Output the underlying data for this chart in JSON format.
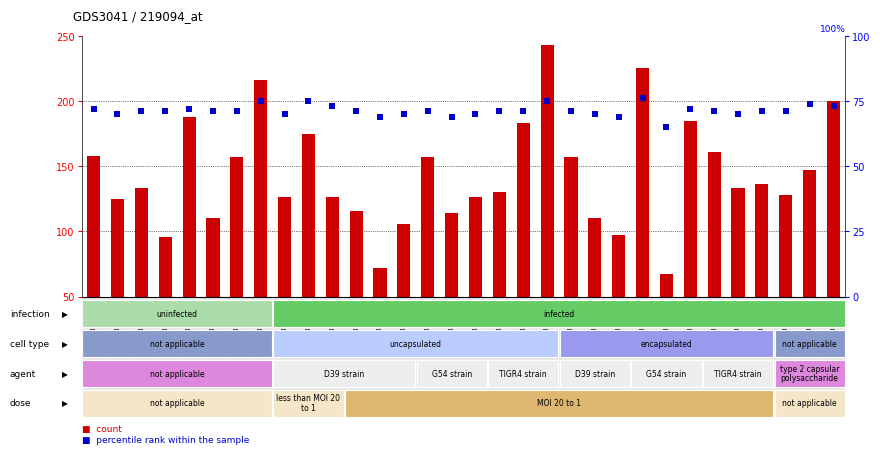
{
  "title": "GDS3041 / 219094_at",
  "samples": [
    "GSM211676",
    "GSM211677",
    "GSM211678",
    "GSM211682",
    "GSM211683",
    "GSM211696",
    "GSM211697",
    "GSM211698",
    "GSM211690",
    "GSM211691",
    "GSM211692",
    "GSM211670",
    "GSM211671",
    "GSM211672",
    "GSM211673",
    "GSM211674",
    "GSM211675",
    "GSM211687",
    "GSM211688",
    "GSM211689",
    "GSM211667",
    "GSM211668",
    "GSM211669",
    "GSM211679",
    "GSM211680",
    "GSM211681",
    "GSM211684",
    "GSM211685",
    "GSM211686",
    "GSM211693",
    "GSM211694",
    "GSM211695"
  ],
  "counts": [
    158,
    125,
    133,
    96,
    188,
    110,
    157,
    216,
    126,
    175,
    126,
    116,
    72,
    106,
    157,
    114,
    126,
    130,
    183,
    243,
    157,
    110,
    97,
    225,
    67,
    185,
    161,
    133,
    136,
    128,
    147,
    200
  ],
  "percentiles": [
    72,
    70,
    71,
    71,
    72,
    71,
    71,
    75,
    70,
    75,
    73,
    71,
    69,
    70,
    71,
    69,
    70,
    71,
    71,
    75,
    71,
    70,
    69,
    76,
    65,
    72,
    71,
    70,
    71,
    71,
    74,
    73
  ],
  "bar_color": "#cc0000",
  "dot_color": "#0000cc",
  "ymin": 50,
  "ymax": 250,
  "yticks_left": [
    50,
    100,
    150,
    200,
    250
  ],
  "yticks_right": [
    0,
    25,
    50,
    75,
    100
  ],
  "grid_lines": [
    100,
    150,
    200
  ],
  "annotation_rows": [
    {
      "label": "infection",
      "segments": [
        {
          "text": "uninfected",
          "start": 0,
          "end": 8,
          "color": "#aaddaa"
        },
        {
          "text": "infected",
          "start": 8,
          "end": 32,
          "color": "#66cc66"
        }
      ]
    },
    {
      "label": "cell type",
      "segments": [
        {
          "text": "not applicable",
          "start": 0,
          "end": 8,
          "color": "#8899cc"
        },
        {
          "text": "uncapsulated",
          "start": 8,
          "end": 20,
          "color": "#bbccff"
        },
        {
          "text": "encapsulated",
          "start": 20,
          "end": 29,
          "color": "#9999ee"
        },
        {
          "text": "not applicable",
          "start": 29,
          "end": 32,
          "color": "#8899cc"
        }
      ]
    },
    {
      "label": "agent",
      "segments": [
        {
          "text": "not applicable",
          "start": 0,
          "end": 8,
          "color": "#dd88dd"
        },
        {
          "text": "D39 strain",
          "start": 8,
          "end": 14,
          "color": "#eeeeee"
        },
        {
          "text": "G54 strain",
          "start": 14,
          "end": 17,
          "color": "#eeeeee"
        },
        {
          "text": "TIGR4 strain",
          "start": 17,
          "end": 20,
          "color": "#eeeeee"
        },
        {
          "text": "D39 strain",
          "start": 20,
          "end": 23,
          "color": "#eeeeee"
        },
        {
          "text": "G54 strain",
          "start": 23,
          "end": 26,
          "color": "#eeeeee"
        },
        {
          "text": "TIGR4 strain",
          "start": 26,
          "end": 29,
          "color": "#eeeeee"
        },
        {
          "text": "type 2 capsular\npolysaccharide",
          "start": 29,
          "end": 32,
          "color": "#dd88dd"
        }
      ]
    },
    {
      "label": "dose",
      "segments": [
        {
          "text": "not applicable",
          "start": 0,
          "end": 8,
          "color": "#f5e6c8"
        },
        {
          "text": "less than MOI 20\nto 1",
          "start": 8,
          "end": 11,
          "color": "#f5e6c8"
        },
        {
          "text": "MOI 20 to 1",
          "start": 11,
          "end": 29,
          "color": "#deb870"
        },
        {
          "text": "not applicable",
          "start": 29,
          "end": 32,
          "color": "#f5e6c8"
        }
      ]
    }
  ]
}
